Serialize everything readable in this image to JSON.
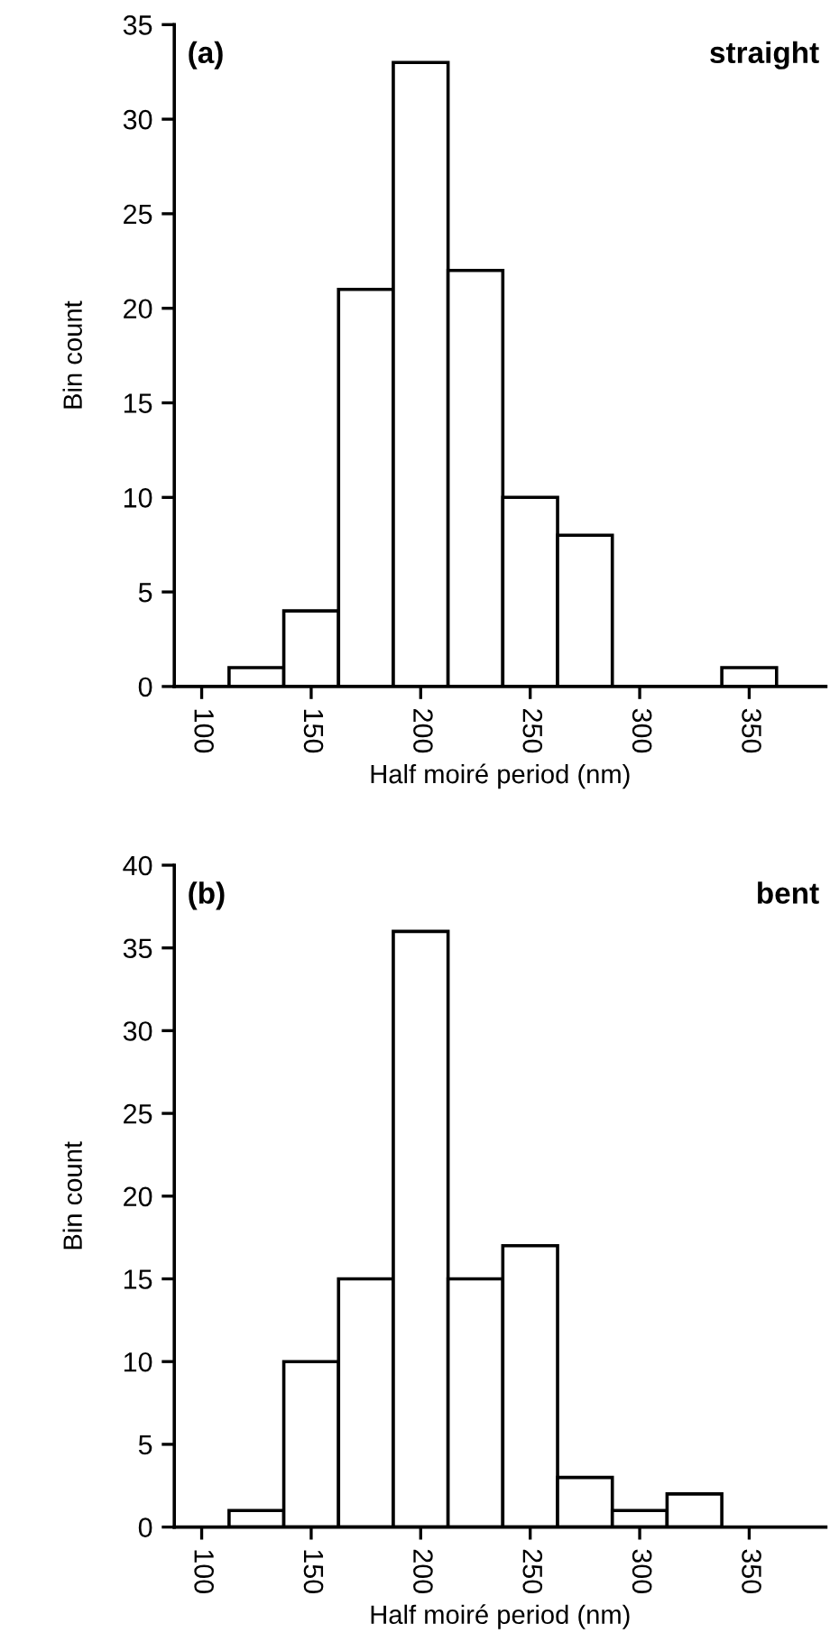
{
  "chart_data": [
    {
      "type": "histogram",
      "xlabel": "Half moiré period (nm)",
      "ylabel": "Bin count",
      "bins": [
        112.5,
        137.5,
        162.5,
        187.5,
        212.5,
        237.5,
        262.5,
        287.5,
        312.5,
        337.5,
        362.5
      ],
      "values": [
        1,
        4,
        21,
        33,
        22,
        10,
        8,
        0,
        0,
        1
      ],
      "color": "#ffffff",
      "xlim": [
        87.5,
        385
      ],
      "xticks": [
        100,
        150,
        200,
        250,
        300,
        350
      ],
      "ylim": [
        0,
        35
      ],
      "yticks": [
        0,
        5,
        10,
        15,
        20,
        25,
        30,
        35
      ],
      "annotations": [
        "(a)",
        "straight"
      ],
      "grid": false
    },
    {
      "type": "histogram",
      "xlabel": "Half moiré period (nm)",
      "ylabel": "Bin count",
      "bins": [
        112.5,
        137.5,
        162.5,
        187.5,
        212.5,
        237.5,
        262.5,
        287.5,
        312.5,
        337.5
      ],
      "values": [
        1,
        10,
        15,
        36,
        15,
        17,
        3,
        1,
        2
      ],
      "color": "#ffffff",
      "xlim": [
        87.5,
        385
      ],
      "xticks": [
        100,
        150,
        200,
        250,
        300,
        350
      ],
      "ylim": [
        0,
        40
      ],
      "yticks": [
        0,
        5,
        10,
        15,
        20,
        25,
        30,
        35,
        40
      ],
      "annotations": [
        "(b)",
        "bent"
      ],
      "grid": false
    }
  ]
}
